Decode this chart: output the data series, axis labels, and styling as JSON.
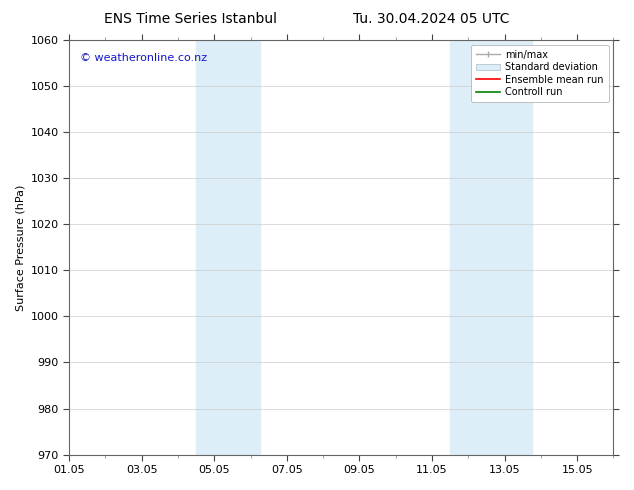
{
  "title_left": "ENS Time Series Istanbul",
  "title_right": "Tu. 30.04.2024 05 UTC",
  "ylabel": "Surface Pressure (hPa)",
  "ylim": [
    970,
    1060
  ],
  "yticks": [
    970,
    980,
    990,
    1000,
    1010,
    1020,
    1030,
    1040,
    1050,
    1060
  ],
  "xlim": [
    0,
    15
  ],
  "xtick_labels": [
    "01.05",
    "03.05",
    "05.05",
    "07.05",
    "09.05",
    "11.05",
    "13.05",
    "15.05"
  ],
  "xtick_positions_days": [
    0,
    2,
    4,
    6,
    8,
    10,
    12,
    14
  ],
  "shaded_bands": [
    {
      "start_day": 3.5,
      "end_day": 5.25,
      "color": "#ddeef8"
    },
    {
      "start_day": 10.5,
      "end_day": 12.75,
      "color": "#ddeef8"
    }
  ],
  "watermark": "© weatheronline.co.nz",
  "watermark_color": "#1515cc",
  "legend_entries": [
    {
      "label": "min/max"
    },
    {
      "label": "Standard deviation"
    },
    {
      "label": "Ensemble mean run"
    },
    {
      "label": "Controll run"
    }
  ],
  "bg_color": "#ffffff",
  "grid_color": "#cccccc",
  "title_fontsize": 10,
  "axis_label_fontsize": 8,
  "tick_fontsize": 8,
  "legend_fontsize": 7,
  "watermark_fontsize": 8
}
